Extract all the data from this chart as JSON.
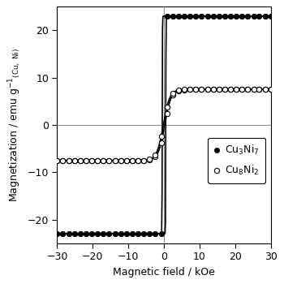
{
  "xlabel": "Magnetic field / kOe",
  "ylabel_main": "Magnetization / emu g",
  "ylabel_sup": "-1",
  "ylabel_sub": "(Cu, Ni)",
  "xlim": [
    -30,
    30
  ],
  "ylim": [
    -25,
    25
  ],
  "xticks": [
    -30,
    -20,
    -10,
    0,
    10,
    20,
    30
  ],
  "yticks": [
    -20,
    -10,
    0,
    10,
    20
  ],
  "background_color": "#ffffff",
  "Cu3Ni7_Ms": 23.0,
  "Cu3Ni7_Hc": 0.5,
  "Cu3Ni7_steep": 18.0,
  "Cu8Ni2_Ms": 7.5,
  "Cu8Ni2_Hc": 0.2,
  "Cu8Ni2_steep": 0.55,
  "marker_size_filled": 4.5,
  "marker_size_open": 4.5,
  "line_width": 1.2,
  "n_markers": 38,
  "legend_filled": "Cu$_3$Ni$_7$",
  "legend_open": "Cu$_8$Ni$_2$"
}
